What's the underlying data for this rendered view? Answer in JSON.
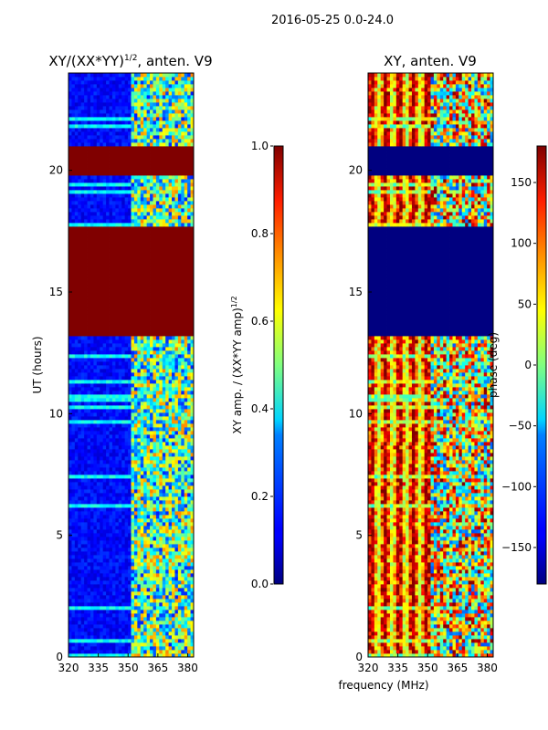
{
  "figure": {
    "suptitle": "2016-05-25 0.0-24.0",
    "xlabel": "frequency (MHz)"
  },
  "chart_data": [
    {
      "type": "heatmap",
      "title_main": "XY/(XX*YY)",
      "title_exp": "1/2",
      "title_suffix": ", anten. V9",
      "xlabel": "",
      "ylabel": "UT (hours)",
      "x_range": [
        320,
        383
      ],
      "y_range": [
        0,
        24
      ],
      "x_ticks": [
        320,
        335,
        350,
        365,
        380
      ],
      "y_ticks": [
        0,
        5,
        10,
        15,
        20
      ],
      "colorbar": {
        "label_main": "XY amp. / (XX*YY amp)",
        "label_exp": "1/2",
        "range": [
          0.0,
          1.0
        ],
        "ticks": [
          "0.0",
          "0.2",
          "0.4",
          "0.6",
          "0.8",
          "1.0"
        ],
        "tick_values": [
          0.0,
          0.2,
          0.4,
          0.6,
          0.8,
          1.0
        ]
      },
      "saturated_bands_hours": [
        [
          13.2,
          17.7
        ],
        [
          19.85,
          21.0
        ]
      ],
      "low_value_region": {
        "freq_max_mhz": 352,
        "typical_value": 0.1
      },
      "high_variability_region": {
        "freq_min_mhz": 353,
        "typical_value": 0.45
      }
    },
    {
      "type": "heatmap",
      "title_main": "XY, anten. V9",
      "xlabel": "",
      "ylabel": "",
      "x_range": [
        320,
        383
      ],
      "y_range": [
        0,
        24
      ],
      "x_ticks": [
        320,
        335,
        350,
        365,
        380
      ],
      "y_ticks": [
        0,
        5,
        10,
        15,
        20
      ],
      "colorbar": {
        "label_main": "phase (deg)",
        "range": [
          -180,
          180
        ],
        "ticks": [
          "150",
          "100",
          "50",
          "0",
          "−50",
          "−100",
          "−150"
        ],
        "tick_values": [
          150,
          100,
          50,
          0,
          -50,
          -100,
          -150
        ]
      },
      "flagged_bands_hours": [
        [
          13.2,
          17.7
        ],
        [
          19.85,
          21.0
        ]
      ]
    }
  ]
}
